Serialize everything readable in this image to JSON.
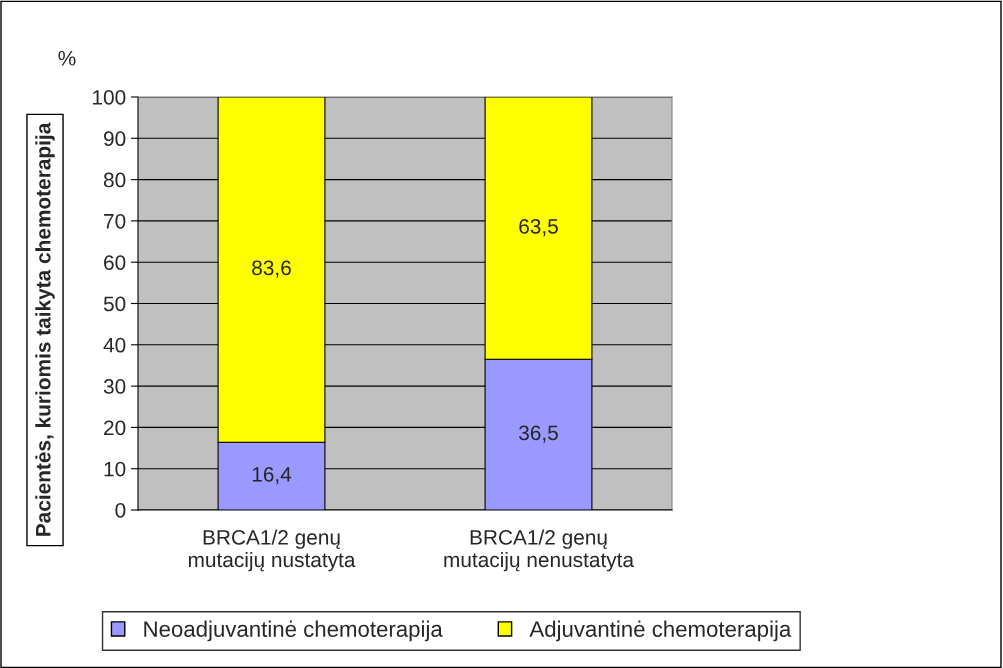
{
  "chart_data": {
    "type": "bar",
    "stacked": true,
    "categories": [
      "BRCA1/2 genų\nmutacijų nustatyta",
      "BRCA1/2 genų\nmutacijų nenustatyta"
    ],
    "series": [
      {
        "name": "Neoadjuvantinė chemoterapija",
        "color": "#9999ff",
        "values": [
          16.4,
          36.5
        ],
        "value_labels": [
          "16,4",
          "36,5"
        ]
      },
      {
        "name": "Adjuvantinė chemoterapija",
        "color": "#ffff00",
        "values": [
          83.6,
          63.5
        ],
        "value_labels": [
          "83,6",
          "63,5"
        ]
      }
    ],
    "ylabel": "Pacientės, kuriomis taikyta chemoterapija",
    "annotations": [
      "%"
    ],
    "ylim": [
      0,
      100
    ],
    "yticks": [
      0,
      10,
      20,
      30,
      40,
      50,
      60,
      70,
      80,
      90,
      100
    ],
    "grid": "y",
    "legend": "bottom"
  }
}
